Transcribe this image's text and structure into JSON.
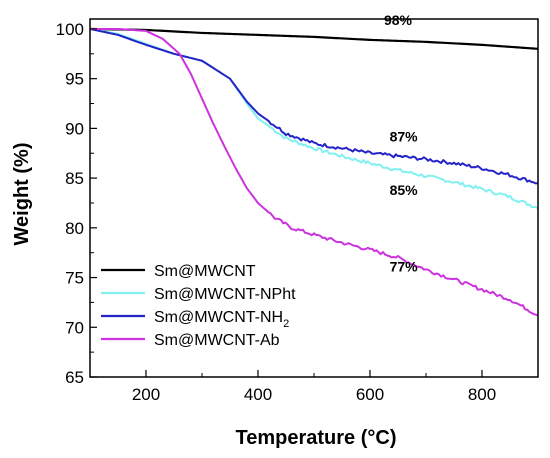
{
  "chart_data": {
    "type": "line",
    "xlabel": "Temperature (°C)",
    "ylabel": "Weight (%)",
    "xlim": [
      100,
      900
    ],
    "ylim": [
      65,
      101
    ],
    "xticks": [
      200,
      400,
      600,
      800
    ],
    "yticks": [
      65,
      70,
      75,
      80,
      85,
      90,
      95,
      100
    ],
    "grid": false,
    "legend_position": "bottom-left",
    "series": [
      {
        "name": "Sm@MWCNT",
        "color": "#000000",
        "x": [
          100,
          200,
          300,
          400,
          500,
          600,
          700,
          800,
          900
        ],
        "y": [
          100,
          99.9,
          99.6,
          99.4,
          99.2,
          98.9,
          98.7,
          98.4,
          98.0
        ]
      },
      {
        "name": "Sm@MWCNT-NPht",
        "color": "#80f0f0",
        "x": [
          100,
          150,
          200,
          250,
          300,
          350,
          380,
          400,
          450,
          500,
          550,
          600,
          650,
          700,
          750,
          800,
          850,
          900
        ],
        "y": [
          100,
          99.5,
          98.5,
          97.5,
          96.8,
          95.0,
          92.5,
          91.0,
          89.0,
          88.0,
          87.2,
          86.5,
          85.8,
          85.2,
          84.6,
          83.9,
          83.1,
          82.0
        ]
      },
      {
        "name": "Sm@MWCNT-NH₂",
        "name_base": "Sm@MWCNT-NH",
        "name_sub": "2",
        "color": "#2323c8",
        "x": [
          100,
          150,
          200,
          250,
          300,
          350,
          380,
          400,
          450,
          500,
          550,
          600,
          650,
          700,
          750,
          800,
          850,
          900
        ],
        "y": [
          100,
          99.4,
          98.4,
          97.5,
          96.8,
          95.0,
          92.7,
          91.5,
          89.5,
          88.5,
          88.0,
          87.5,
          87.2,
          86.9,
          86.5,
          86.0,
          85.3,
          84.5
        ]
      },
      {
        "name": "Sm@MWCNT-Ab",
        "color": "#cc33dd",
        "x": [
          100,
          150,
          200,
          230,
          260,
          280,
          300,
          320,
          340,
          360,
          380,
          400,
          430,
          460,
          500,
          550,
          600,
          650,
          700,
          750,
          800,
          850,
          900
        ],
        "y": [
          100,
          100,
          99.8,
          99.0,
          97.5,
          95.5,
          93.0,
          90.5,
          88.2,
          86.0,
          84.0,
          82.5,
          81.0,
          80.0,
          79.3,
          78.5,
          77.8,
          77.0,
          75.8,
          74.8,
          73.8,
          72.8,
          71.2
        ]
      }
    ],
    "annotations": [
      {
        "text": "98%",
        "x": 650,
        "y": 100.4
      },
      {
        "text": "87%",
        "x": 660,
        "y": 88.7
      },
      {
        "text": "85%",
        "x": 660,
        "y": 83.3
      },
      {
        "text": "77%",
        "x": 660,
        "y": 75.6
      }
    ]
  }
}
